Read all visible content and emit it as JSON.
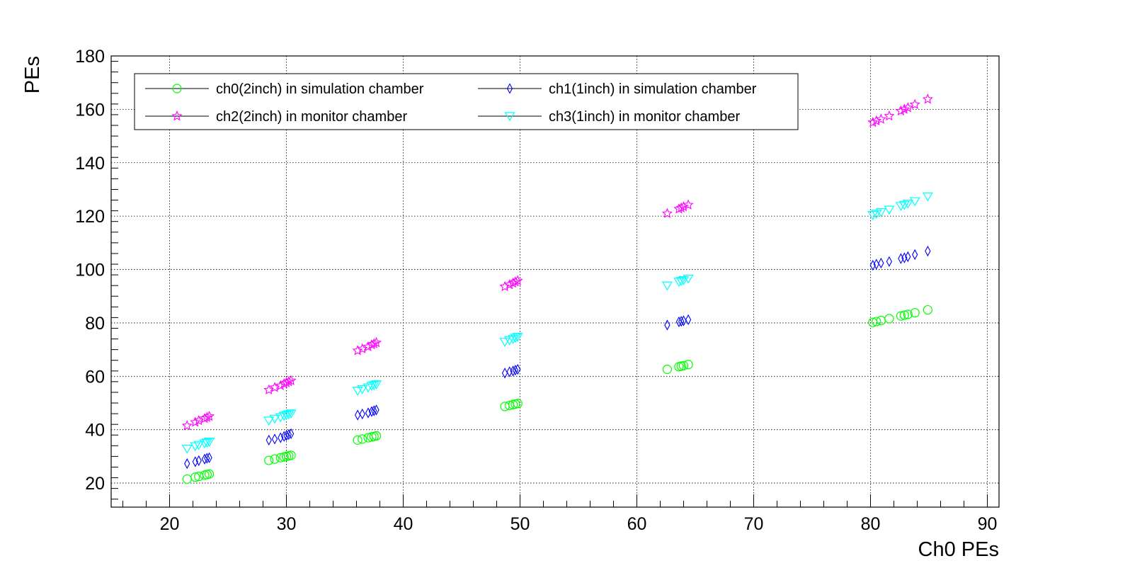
{
  "chart_data": {
    "type": "scatter",
    "xlabel": "Ch0 PEs",
    "ylabel": "PEs",
    "xlim": [
      15,
      91
    ],
    "ylim": [
      11,
      180
    ],
    "x_ticks": [
      20,
      30,
      40,
      50,
      60,
      70,
      80,
      90
    ],
    "y_ticks": [
      20,
      40,
      60,
      80,
      100,
      120,
      140,
      160,
      180
    ],
    "grid": true,
    "legend_position": "top-left",
    "legend_columns": 2,
    "x": [
      21.5,
      22.2,
      22.5,
      23.0,
      23.2,
      23.4,
      28.5,
      29.0,
      29.5,
      29.8,
      30.0,
      30.2,
      30.4,
      36.1,
      36.5,
      37.0,
      37.3,
      37.5,
      37.7,
      48.7,
      49.1,
      49.4,
      49.6,
      49.8,
      62.6,
      63.6,
      63.8,
      64.0,
      64.4,
      80.2,
      80.5,
      80.9,
      81.6,
      82.6,
      82.9,
      83.2,
      83.8,
      84.9
    ],
    "series": [
      {
        "name": "ch0(2inch) in simulation chamber",
        "color": "#00ff00",
        "marker": "open-circle",
        "values": [
          21.5,
          22.2,
          22.5,
          23.0,
          23.2,
          23.4,
          28.5,
          29.0,
          29.5,
          29.8,
          30.0,
          30.2,
          30.4,
          36.1,
          36.5,
          37.0,
          37.3,
          37.5,
          37.7,
          48.7,
          49.1,
          49.4,
          49.6,
          49.8,
          62.6,
          63.6,
          63.8,
          64.0,
          64.4,
          80.2,
          80.5,
          80.9,
          81.6,
          82.6,
          82.9,
          83.2,
          83.8,
          84.9
        ]
      },
      {
        "name": "ch1(1inch) in simulation chamber",
        "color": "#0000ff",
        "marker": "open-diamond",
        "values": [
          27.3,
          28.0,
          28.4,
          29.0,
          29.3,
          29.5,
          36.1,
          36.5,
          37.0,
          37.5,
          37.8,
          38.2,
          38.5,
          45.5,
          45.9,
          46.3,
          46.8,
          47.1,
          47.4,
          61.2,
          61.7,
          62.0,
          62.3,
          62.6,
          79.2,
          80.4,
          80.6,
          80.8,
          81.2,
          101.6,
          102.0,
          102.4,
          103.0,
          104.1,
          104.4,
          104.8,
          105.6,
          106.9
        ]
      },
      {
        "name": "ch2(2inch) in monitor chamber",
        "color": "#ff00ff",
        "marker": "open-star",
        "values": [
          41.5,
          42.8,
          43.4,
          44.2,
          44.6,
          45.0,
          54.9,
          55.8,
          56.5,
          57.2,
          57.6,
          58.0,
          58.4,
          69.6,
          70.3,
          71.1,
          71.8,
          72.2,
          72.6,
          93.6,
          94.3,
          94.9,
          95.4,
          95.8,
          121.0,
          122.7,
          123.1,
          123.5,
          124.2,
          155.1,
          155.7,
          156.3,
          157.5,
          159.4,
          160.0,
          160.6,
          161.8,
          163.8
        ]
      },
      {
        "name": "ch3(1inch) in monitor chamber",
        "color": "#00ffff",
        "marker": "open-triangle-down",
        "values": [
          32.9,
          33.8,
          34.3,
          34.9,
          35.2,
          35.5,
          43.4,
          44.1,
          44.7,
          45.2,
          45.5,
          45.8,
          46.1,
          54.6,
          55.2,
          55.8,
          56.4,
          56.7,
          57.0,
          72.9,
          73.5,
          74.0,
          74.4,
          74.8,
          94.0,
          95.4,
          95.7,
          96.0,
          96.6,
          120.4,
          120.9,
          121.5,
          122.4,
          123.8,
          124.2,
          124.7,
          125.6,
          127.4
        ]
      }
    ]
  }
}
